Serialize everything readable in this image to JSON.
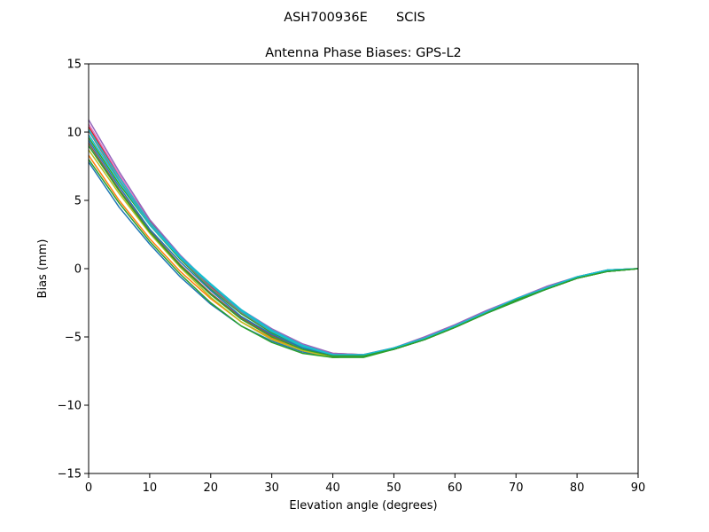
{
  "figure": {
    "suptitle": "ASH700936E       SCIS"
  },
  "chart_data": {
    "type": "line",
    "title": "Antenna Phase Biases: GPS-L2",
    "xlabel": "Elevation angle (degrees)",
    "ylabel": "Bias (mm)",
    "xlim": [
      0,
      90
    ],
    "ylim": [
      -15,
      15
    ],
    "xticks": [
      0,
      10,
      20,
      30,
      40,
      50,
      60,
      70,
      80,
      90
    ],
    "yticks": [
      -15,
      -10,
      -5,
      0,
      5,
      10,
      15
    ],
    "ytick_labels": [
      "−15",
      "−10",
      "−5",
      "0",
      "5",
      "10",
      "15"
    ],
    "grid": false,
    "legend": "none",
    "x": [
      0,
      5,
      10,
      15,
      20,
      25,
      30,
      35,
      40,
      45,
      50,
      55,
      60,
      65,
      70,
      75,
      80,
      85,
      90
    ],
    "series": [
      {
        "color": "#1f77b4",
        "values": [
          7.8,
          4.5,
          1.8,
          -0.6,
          -2.6,
          -4.2,
          -5.3,
          -6.1,
          -6.5,
          -6.4,
          -5.9,
          -5.2,
          -4.3,
          -3.3,
          -2.4,
          -1.5,
          -0.7,
          -0.2,
          0.0
        ]
      },
      {
        "color": "#ff7f0e",
        "values": [
          8.3,
          5.0,
          2.2,
          -0.2,
          -2.2,
          -3.9,
          -5.1,
          -6.0,
          -6.5,
          -6.4,
          -5.9,
          -5.2,
          -4.3,
          -3.3,
          -2.3,
          -1.5,
          -0.7,
          -0.2,
          0.0
        ]
      },
      {
        "color": "#2ca02c",
        "values": [
          9.6,
          6.2,
          3.2,
          0.7,
          -1.5,
          -3.3,
          -4.7,
          -5.7,
          -6.4,
          -6.4,
          -5.9,
          -5.2,
          -4.3,
          -3.3,
          -2.3,
          -1.5,
          -0.7,
          -0.2,
          0.0
        ]
      },
      {
        "color": "#d62728",
        "values": [
          10.4,
          6.8,
          3.5,
          0.9,
          -1.3,
          -3.1,
          -4.5,
          -5.6,
          -6.2,
          -6.3,
          -5.8,
          -5.1,
          -4.2,
          -3.2,
          -2.2,
          -1.4,
          -0.6,
          -0.1,
          0.0
        ]
      },
      {
        "color": "#9467bd",
        "values": [
          10.9,
          7.1,
          3.6,
          1.0,
          -1.2,
          -3.0,
          -4.4,
          -5.5,
          -6.2,
          -6.3,
          -5.8,
          -5.0,
          -4.1,
          -3.1,
          -2.2,
          -1.3,
          -0.6,
          -0.1,
          0.0
        ]
      },
      {
        "color": "#8c564b",
        "values": [
          9.2,
          5.8,
          2.8,
          0.3,
          -1.8,
          -3.6,
          -4.9,
          -5.8,
          -6.4,
          -6.4,
          -5.9,
          -5.2,
          -4.3,
          -3.3,
          -2.3,
          -1.5,
          -0.7,
          -0.2,
          0.0
        ]
      },
      {
        "color": "#e377c2",
        "values": [
          10.6,
          6.9,
          3.4,
          0.8,
          -1.4,
          -3.2,
          -4.6,
          -5.6,
          -6.3,
          -6.3,
          -5.8,
          -5.1,
          -4.2,
          -3.2,
          -2.2,
          -1.4,
          -0.6,
          -0.1,
          0.0
        ]
      },
      {
        "color": "#7f7f7f",
        "values": [
          10.1,
          6.5,
          3.3,
          0.8,
          -1.4,
          -3.2,
          -4.6,
          -5.7,
          -6.3,
          -6.4,
          -5.8,
          -5.1,
          -4.2,
          -3.2,
          -2.3,
          -1.4,
          -0.6,
          -0.1,
          0.0
        ]
      },
      {
        "color": "#bcbd22",
        "values": [
          8.7,
          5.5,
          2.6,
          0.1,
          -2.1,
          -3.9,
          -5.2,
          -6.0,
          -6.5,
          -6.4,
          -5.9,
          -5.2,
          -4.3,
          -3.3,
          -2.3,
          -1.5,
          -0.7,
          -0.2,
          0.0
        ]
      },
      {
        "color": "#17becf",
        "values": [
          9.8,
          6.4,
          3.2,
          0.8,
          -1.2,
          -3.1,
          -4.6,
          -5.7,
          -6.3,
          -6.4,
          -5.8,
          -5.1,
          -4.2,
          -3.2,
          -2.3,
          -1.4,
          -0.6,
          -0.1,
          0.0
        ]
      },
      {
        "color": "#1f77b4",
        "values": [
          9.4,
          6.0,
          2.9,
          0.5,
          -1.6,
          -3.5,
          -4.8,
          -5.8,
          -6.4,
          -6.4,
          -5.9,
          -5.2,
          -4.3,
          -3.3,
          -2.3,
          -1.5,
          -0.7,
          -0.2,
          0.0
        ]
      },
      {
        "color": "#2ca02c",
        "values": [
          8.0,
          4.8,
          2.0,
          -0.4,
          -2.5,
          -4.2,
          -5.4,
          -6.2,
          -6.5,
          -6.5,
          -5.9,
          -5.2,
          -4.3,
          -3.3,
          -2.4,
          -1.5,
          -0.7,
          -0.2,
          0.0
        ]
      },
      {
        "color": "#17becf",
        "values": [
          10.2,
          6.7,
          3.4,
          0.9,
          -1.1,
          -3.0,
          -4.5,
          -5.6,
          -6.3,
          -6.3,
          -5.8,
          -5.1,
          -4.2,
          -3.2,
          -2.2,
          -1.4,
          -0.6,
          -0.1,
          0.0
        ]
      },
      {
        "color": "#2ca02c",
        "values": [
          9.0,
          5.7,
          2.7,
          0.2,
          -1.9,
          -3.7,
          -5.0,
          -5.9,
          -6.4,
          -6.4,
          -5.9,
          -5.2,
          -4.3,
          -3.3,
          -2.3,
          -1.5,
          -0.7,
          -0.2,
          0.0
        ]
      }
    ]
  }
}
